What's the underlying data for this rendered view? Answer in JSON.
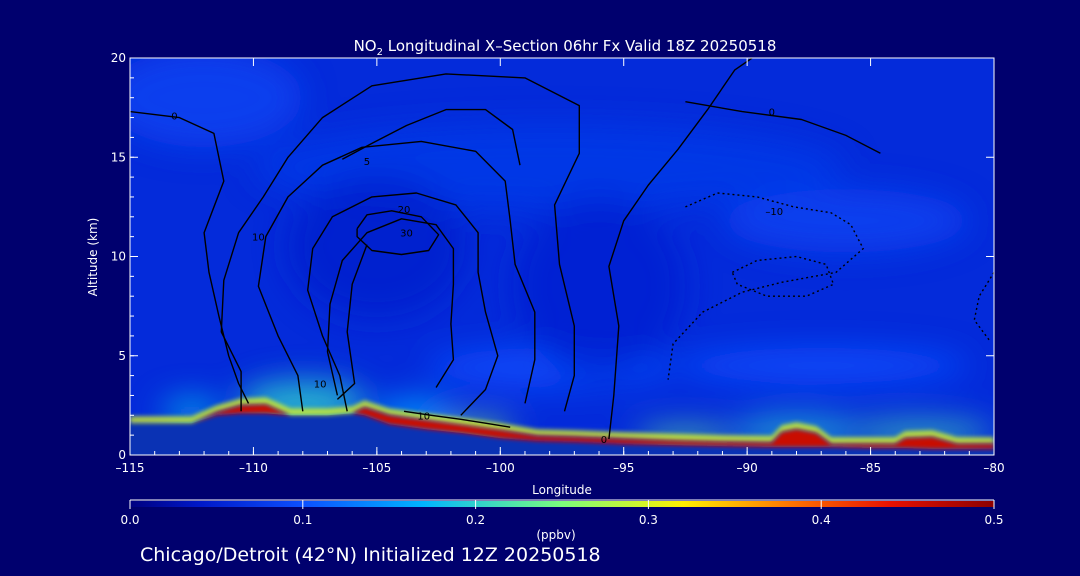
{
  "chart_data": {
    "type": "heatmap",
    "title": {
      "prefix": "NO",
      "subscript": "2",
      "suffix": " Longitudinal X–Section 06hr  Fx Valid 18Z 20250518"
    },
    "xlabel": "Longitude",
    "ylabel": "Altitude (km)",
    "xlim": [
      -115,
      -80
    ],
    "ylim": [
      0,
      20
    ],
    "x_ticks": [
      -115,
      -110,
      -105,
      -100,
      -95,
      -90,
      -85,
      -80
    ],
    "x_tick_labels": [
      "–115",
      "–110",
      "–105",
      "–100",
      "–95",
      "–90",
      "–85",
      "–80"
    ],
    "y_ticks": [
      0,
      5,
      10,
      15,
      20
    ],
    "y_tick_labels": [
      "0",
      "5",
      "10",
      "15",
      "20"
    ],
    "background_value": 0.06,
    "field_blobs": [
      {
        "x": -108,
        "y": 2.6,
        "rx": 2.6,
        "ry": 1.1,
        "value": 0.2
      },
      {
        "x": -103.5,
        "y": 2.0,
        "rx": 1.6,
        "ry": 0.8,
        "value": 0.16
      },
      {
        "x": -112.5,
        "y": 2.2,
        "rx": 1.2,
        "ry": 0.6,
        "value": 0.18
      },
      {
        "x": -88,
        "y": 1.2,
        "rx": 2.6,
        "ry": 0.6,
        "value": 0.2
      },
      {
        "x": -83,
        "y": 1.1,
        "rx": 3.0,
        "ry": 0.5,
        "value": 0.22
      },
      {
        "x": -92.5,
        "y": 0.9,
        "rx": 2.0,
        "ry": 0.4,
        "value": 0.24
      },
      {
        "x": -101,
        "y": 1.1,
        "rx": 1.5,
        "ry": 0.5,
        "value": 0.26
      },
      {
        "x": -98,
        "y": 4.4,
        "rx": 5.0,
        "ry": 1.0,
        "value": 0.1
      },
      {
        "x": -87,
        "y": 4.5,
        "rx": 6.0,
        "ry": 0.9,
        "value": 0.1
      },
      {
        "x": -86,
        "y": 11.8,
        "rx": 5.0,
        "ry": 1.6,
        "value": 0.085
      },
      {
        "x": -98,
        "y": 14.5,
        "rx": 12.0,
        "ry": 2.2,
        "value": 0.075
      },
      {
        "x": -112,
        "y": 18.0,
        "rx": 4.0,
        "ry": 2.5,
        "value": 0.085
      },
      {
        "x": -105,
        "y": 10.5,
        "rx": 3.6,
        "ry": 3.6,
        "value": 0.045
      },
      {
        "x": -96,
        "y": 8.5,
        "rx": 3.5,
        "ry": 4.5,
        "value": 0.05
      }
    ],
    "surface_layer": [
      {
        "x": -115.0,
        "ground": 1.6,
        "top": 1.6
      },
      {
        "x": -113.5,
        "ground": 1.6,
        "top": 1.6
      },
      {
        "x": -112.5,
        "ground": 1.6,
        "top": 1.6
      },
      {
        "x": -111.5,
        "ground": 2.0,
        "top": 2.15
      },
      {
        "x": -110.5,
        "ground": 2.1,
        "top": 2.5
      },
      {
        "x": -109.5,
        "ground": 2.1,
        "top": 2.55
      },
      {
        "x": -108.5,
        "ground": 2.0,
        "top": 2.0
      },
      {
        "x": -107.0,
        "ground": 2.0,
        "top": 2.0
      },
      {
        "x": -106.0,
        "ground": 2.1,
        "top": 2.1
      },
      {
        "x": -105.5,
        "ground": 2.0,
        "top": 2.4
      },
      {
        "x": -104.5,
        "ground": 1.55,
        "top": 2.0
      },
      {
        "x": -103.0,
        "ground": 1.3,
        "top": 1.75
      },
      {
        "x": -101.5,
        "ground": 1.1,
        "top": 1.5
      },
      {
        "x": -100.0,
        "ground": 0.85,
        "top": 1.25
      },
      {
        "x": -98.5,
        "ground": 0.7,
        "top": 0.95
      },
      {
        "x": -97.0,
        "ground": 0.65,
        "top": 0.9
      },
      {
        "x": -95.0,
        "ground": 0.55,
        "top": 0.8
      },
      {
        "x": -93.0,
        "ground": 0.5,
        "top": 0.72
      },
      {
        "x": -91.0,
        "ground": 0.45,
        "top": 0.65
      },
      {
        "x": -89.0,
        "ground": 0.4,
        "top": 0.62
      },
      {
        "x": -88.6,
        "ground": 0.4,
        "top": 1.15
      },
      {
        "x": -88.0,
        "ground": 0.4,
        "top": 1.3
      },
      {
        "x": -87.2,
        "ground": 0.4,
        "top": 1.1
      },
      {
        "x": -86.6,
        "ground": 0.4,
        "top": 0.55
      },
      {
        "x": -85.0,
        "ground": 0.35,
        "top": 0.55
      },
      {
        "x": -84.0,
        "ground": 0.35,
        "top": 0.55
      },
      {
        "x": -83.6,
        "ground": 0.35,
        "top": 0.85
      },
      {
        "x": -82.5,
        "ground": 0.3,
        "top": 0.9
      },
      {
        "x": -81.5,
        "ground": 0.3,
        "top": 0.55
      },
      {
        "x": -80.0,
        "ground": 0.3,
        "top": 0.55
      }
    ],
    "contours": [
      {
        "value": 0,
        "dashed": false,
        "label": "0",
        "label_at": [
          -113.2,
          17.1
        ],
        "points": [
          [
            -115,
            17.3
          ],
          [
            -113,
            17.0
          ],
          [
            -111.6,
            16.2
          ],
          [
            -111.2,
            13.8
          ],
          [
            -112.0,
            11.2
          ],
          [
            -111.8,
            9.2
          ],
          [
            -111.4,
            7.0
          ],
          [
            -111.0,
            5.0
          ],
          [
            -110.6,
            3.6
          ],
          [
            -110.2,
            2.6
          ]
        ]
      },
      {
        "value": 0,
        "dashed": false,
        "label": "0",
        "label_at": [
          -95.8,
          0.8
        ],
        "points": [
          [
            -95.6,
            0.8
          ],
          [
            -95.4,
            3.0
          ],
          [
            -95.2,
            6.5
          ],
          [
            -95.6,
            9.5
          ],
          [
            -95.0,
            11.8
          ],
          [
            -94.0,
            13.6
          ],
          [
            -92.8,
            15.4
          ],
          [
            -91.6,
            17.4
          ],
          [
            -90.5,
            19.4
          ],
          [
            -89.8,
            20
          ]
        ]
      },
      {
        "value": 0,
        "dashed": false,
        "label": "0",
        "label_at": [
          -89.0,
          17.3
        ],
        "points": [
          [
            -92.5,
            17.8
          ],
          [
            -90.2,
            17.3
          ],
          [
            -87.8,
            16.9
          ],
          [
            -86.0,
            16.1
          ],
          [
            -84.6,
            15.2
          ]
        ]
      },
      {
        "value": 10,
        "dashed": false,
        "label": "10",
        "label_at": [
          -107.3,
          3.6
        ],
        "points": [
          [
            -110.5,
            2.2
          ],
          [
            -110.5,
            4.2
          ],
          [
            -111.3,
            6.2
          ],
          [
            -111.2,
            8.8
          ],
          [
            -110.6,
            11.2
          ],
          [
            -109.6,
            13.0
          ],
          [
            -108.6,
            15.0
          ],
          [
            -107.2,
            17.0
          ],
          [
            -105.2,
            18.6
          ],
          [
            -102.2,
            19.2
          ],
          [
            -99.0,
            19.0
          ],
          [
            -96.8,
            17.6
          ],
          [
            -96.8,
            15.2
          ],
          [
            -97.8,
            12.6
          ],
          [
            -97.6,
            9.6
          ],
          [
            -97.0,
            6.5
          ],
          [
            -97.0,
            4.0
          ],
          [
            -97.4,
            2.2
          ]
        ]
      },
      {
        "value": 10,
        "dashed": false,
        "label": "",
        "label_at": null,
        "points": [
          [
            -108.0,
            2.2
          ],
          [
            -108.2,
            4.0
          ],
          [
            -109.0,
            6.0
          ],
          [
            -109.8,
            8.5
          ],
          [
            -109.5,
            11.0
          ],
          [
            -108.6,
            13.0
          ],
          [
            -107.2,
            14.6
          ],
          [
            -105.6,
            15.5
          ],
          [
            -103.2,
            15.8
          ],
          [
            -101.0,
            15.3
          ],
          [
            -99.8,
            13.8
          ],
          [
            -99.6,
            11.8
          ],
          [
            -99.4,
            9.6
          ],
          [
            -98.6,
            7.2
          ],
          [
            -98.6,
            4.8
          ],
          [
            -99.0,
            2.6
          ]
        ]
      },
      {
        "value": 5,
        "dashed": false,
        "label": "5",
        "label_at": [
          -105.4,
          14.8
        ],
        "points": [
          [
            -106.4,
            14.9
          ],
          [
            -105.2,
            15.7
          ],
          [
            -103.8,
            16.6
          ],
          [
            -102.2,
            17.4
          ],
          [
            -100.6,
            17.4
          ],
          [
            -99.5,
            16.4
          ],
          [
            -99.2,
            14.6
          ]
        ]
      },
      {
        "value": 20,
        "dashed": false,
        "label": "20",
        "label_at": [
          -103.9,
          12.4
        ],
        "points": [
          [
            -106.2,
            2.2
          ],
          [
            -106.5,
            4.0
          ],
          [
            -107.2,
            6.0
          ],
          [
            -107.8,
            8.3
          ],
          [
            -107.6,
            10.4
          ],
          [
            -106.8,
            12.0
          ],
          [
            -105.2,
            13.0
          ],
          [
            -103.4,
            13.2
          ],
          [
            -101.8,
            12.6
          ],
          [
            -100.9,
            11.2
          ],
          [
            -100.9,
            9.2
          ],
          [
            -100.6,
            7.2
          ],
          [
            -100.1,
            5.0
          ],
          [
            -100.6,
            3.3
          ],
          [
            -101.6,
            2.0
          ]
        ]
      },
      {
        "value": 20,
        "dashed": false,
        "label": "",
        "label_at": null,
        "points": [
          [
            -106.6,
            3.0
          ],
          [
            -107.0,
            5.2
          ],
          [
            -106.9,
            7.6
          ],
          [
            -106.4,
            9.8
          ],
          [
            -105.4,
            11.2
          ],
          [
            -104.0,
            11.9
          ],
          [
            -102.6,
            11.6
          ],
          [
            -101.9,
            10.4
          ],
          [
            -101.9,
            8.6
          ],
          [
            -102.0,
            6.6
          ],
          [
            -101.9,
            4.8
          ],
          [
            -102.6,
            3.4
          ]
        ]
      },
      {
        "value": 30,
        "dashed": false,
        "label": "30",
        "label_at": [
          -103.8,
          11.2
        ],
        "points": [
          [
            -105.8,
            11.4
          ],
          [
            -105.4,
            12.1
          ],
          [
            -104.4,
            12.3
          ],
          [
            -103.2,
            12.0
          ],
          [
            -102.5,
            11.1
          ],
          [
            -102.9,
            10.3
          ],
          [
            -104.0,
            10.1
          ],
          [
            -105.2,
            10.3
          ],
          [
            -105.8,
            11.0
          ],
          [
            -105.8,
            11.4
          ]
        ]
      },
      {
        "value": 10,
        "dashed": false,
        "label": "10",
        "label_at": [
          -109.8,
          11.0
        ],
        "points": [
          [
            -106.6,
            2.8
          ],
          [
            -105.9,
            3.6
          ],
          [
            -106.2,
            6.2
          ],
          [
            -106.0,
            8.6
          ],
          [
            -105.4,
            10.6
          ]
        ]
      },
      {
        "value": 10,
        "dashed": false,
        "label": "10",
        "label_at": [
          -103.1,
          2.0
        ],
        "points": [
          [
            -103.9,
            2.2
          ],
          [
            -102.8,
            2.0
          ],
          [
            -101.6,
            1.8
          ],
          [
            -100.6,
            1.6
          ],
          [
            -99.6,
            1.4
          ]
        ]
      },
      {
        "value": -10,
        "dashed": true,
        "label": "–10",
        "label_at": [
          -88.9,
          12.3
        ],
        "points": [
          [
            -92.5,
            12.5
          ],
          [
            -91.2,
            13.2
          ],
          [
            -89.6,
            13.0
          ],
          [
            -88.1,
            12.5
          ],
          [
            -86.6,
            12.2
          ],
          [
            -85.8,
            11.6
          ],
          [
            -85.3,
            10.4
          ],
          [
            -86.4,
            9.2
          ],
          [
            -88.6,
            8.7
          ],
          [
            -90.2,
            8.2
          ],
          [
            -91.8,
            7.2
          ],
          [
            -93.0,
            5.6
          ],
          [
            -93.2,
            3.8
          ]
        ]
      },
      {
        "value": -10,
        "dashed": true,
        "label": "",
        "label_at": null,
        "points": [
          [
            -90.6,
            9.2
          ],
          [
            -89.6,
            9.8
          ],
          [
            -88.0,
            10.0
          ],
          [
            -86.8,
            9.6
          ],
          [
            -86.5,
            8.6
          ],
          [
            -87.6,
            8.0
          ],
          [
            -89.2,
            8.0
          ],
          [
            -90.4,
            8.6
          ],
          [
            -90.6,
            9.2
          ]
        ]
      },
      {
        "value": -10,
        "dashed": true,
        "label": "",
        "label_at": null,
        "points": [
          [
            -80.0,
            9.2
          ],
          [
            -80.6,
            8.0
          ],
          [
            -80.8,
            6.8
          ],
          [
            -80.2,
            5.8
          ]
        ]
      }
    ],
    "colorbar": {
      "label": "(ppbv)",
      "min": 0.0,
      "max": 0.5,
      "ticks": [
        0.0,
        0.1,
        0.2,
        0.3,
        0.4,
        0.5
      ],
      "tick_labels": [
        "0.0",
        "0.1",
        "0.2",
        "0.3",
        "0.4",
        "0.5"
      ],
      "colormap": [
        {
          "v": 0.0,
          "color": "#000080"
        },
        {
          "v": 0.04,
          "color": "#0018c8"
        },
        {
          "v": 0.1,
          "color": "#0c50ff"
        },
        {
          "v": 0.17,
          "color": "#00b4ff"
        },
        {
          "v": 0.25,
          "color": "#7cff7c"
        },
        {
          "v": 0.32,
          "color": "#fff000"
        },
        {
          "v": 0.38,
          "color": "#ff7800"
        },
        {
          "v": 0.44,
          "color": "#e81000"
        },
        {
          "v": 0.5,
          "color": "#8c0000"
        }
      ]
    }
  },
  "footer": {
    "caption": "Chicago/Detroit (42°N) Initialized 12Z 20250518"
  },
  "colors": {
    "page_background": "#00006e",
    "terrain": "#0a32b4",
    "contour": "#000000",
    "text": "#ffffff"
  }
}
